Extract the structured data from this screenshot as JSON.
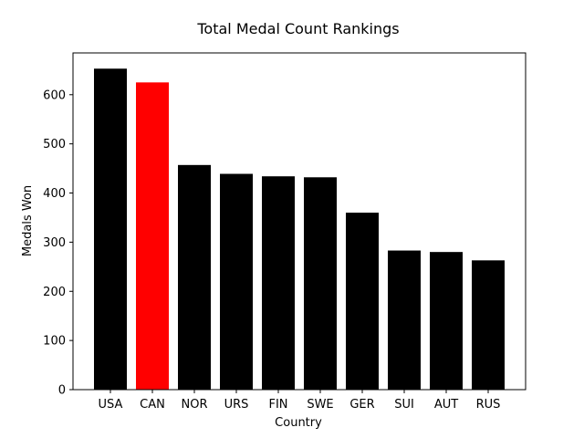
{
  "chart_data": {
    "type": "bar",
    "title": "Total Medal Count Rankings",
    "xlabel": "Country",
    "ylabel": "Medals Won",
    "categories": [
      "USA",
      "CAN",
      "NOR",
      "URS",
      "FIN",
      "SWE",
      "GER",
      "SUI",
      "AUT",
      "RUS"
    ],
    "values": [
      653,
      625,
      457,
      439,
      434,
      432,
      360,
      283,
      280,
      263
    ],
    "colors": [
      "#000000",
      "#ff0000",
      "#000000",
      "#000000",
      "#000000",
      "#000000",
      "#000000",
      "#000000",
      "#000000",
      "#000000"
    ],
    "yticks": [
      0,
      100,
      200,
      300,
      400,
      500,
      600
    ],
    "ylim": [
      0,
      685
    ],
    "grid": false
  }
}
